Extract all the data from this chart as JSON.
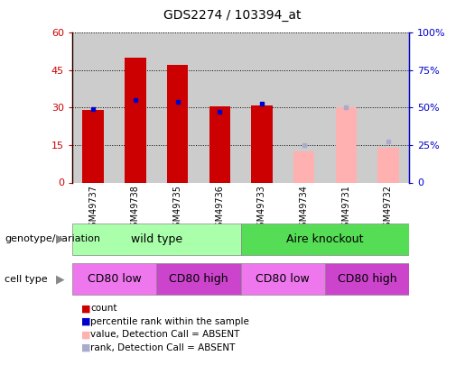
{
  "title": "GDS2274 / 103394_at",
  "samples": [
    "GSM49737",
    "GSM49738",
    "GSM49735",
    "GSM49736",
    "GSM49733",
    "GSM49734",
    "GSM49731",
    "GSM49732"
  ],
  "count_values": [
    29,
    50,
    47,
    30.5,
    31,
    null,
    null,
    null
  ],
  "count_absent_values": [
    null,
    null,
    null,
    null,
    null,
    12.5,
    30,
    14
  ],
  "rank_values_left": [
    29.5,
    33,
    32.5,
    28.5,
    31.5,
    null,
    null,
    null
  ],
  "rank_absent_values_left": [
    null,
    null,
    null,
    null,
    null,
    15,
    30,
    16.5
  ],
  "ylim_left": [
    0,
    60
  ],
  "ylim_right": [
    0,
    100
  ],
  "yticks_left": [
    0,
    15,
    30,
    45,
    60
  ],
  "ytick_labels_left": [
    "0",
    "15",
    "30",
    "45",
    "60"
  ],
  "yticks_right": [
    0,
    25,
    50,
    75,
    100
  ],
  "ytick_labels_right": [
    "0",
    "25%",
    "50%",
    "75%",
    "100%"
  ],
  "color_count": "#cc0000",
  "color_rank": "#0000cc",
  "color_count_absent": "#ffb0b0",
  "color_rank_absent": "#aaaacc",
  "bar_width": 0.5,
  "legend_items": [
    {
      "label": "count",
      "color": "#cc0000"
    },
    {
      "label": "percentile rank within the sample",
      "color": "#0000cc"
    },
    {
      "label": "value, Detection Call = ABSENT",
      "color": "#ffb0b0"
    },
    {
      "label": "rank, Detection Call = ABSENT",
      "color": "#aaaacc"
    }
  ],
  "xlabel_genotype": "genotype/variation",
  "xlabel_celltype": "cell type",
  "col_bg_color": "#cccccc",
  "plot_bg": "#ffffff",
  "genotype_wt_color": "#aaffaa",
  "genotype_ko_color": "#55dd55",
  "cell_low_color": "#ee77ee",
  "cell_high_color": "#cc44cc"
}
